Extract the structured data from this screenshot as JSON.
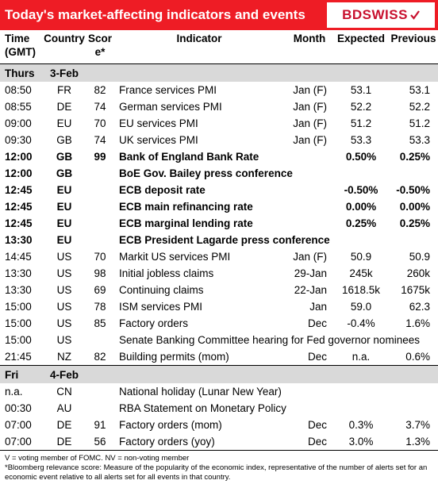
{
  "banner": {
    "title": "Today's market-affecting indicators and events",
    "logo_text": "BDSWISS"
  },
  "headers": {
    "time": "Time (GMT)",
    "country": "Country",
    "score": "Score*",
    "indicator": "Indicator",
    "month": "Month",
    "expected": "Expected",
    "previous": "Previous"
  },
  "days": [
    {
      "day": "Thurs",
      "date": "3-Feb",
      "rows": [
        {
          "time": "08:50",
          "country": "FR",
          "score": "82",
          "indicator": "France services PMI",
          "month": "Jan (F)",
          "expected": "53.1",
          "previous": "53.1",
          "bold": false
        },
        {
          "time": "08:55",
          "country": "DE",
          "score": "74",
          "indicator": "German services PMI",
          "month": "Jan (F)",
          "expected": "52.2",
          "previous": "52.2",
          "bold": false
        },
        {
          "time": "09:00",
          "country": "EU",
          "score": "70",
          "indicator": "EU services PMI",
          "month": "Jan (F)",
          "expected": "51.2",
          "previous": "51.2",
          "bold": false
        },
        {
          "time": "09:30",
          "country": "GB",
          "score": "74",
          "indicator": "UK services PMI",
          "month": "Jan (F)",
          "expected": "53.3",
          "previous": "53.3",
          "bold": false
        },
        {
          "time": "12:00",
          "country": "GB",
          "score": "99",
          "indicator": "Bank of England Bank Rate",
          "month": "",
          "expected": "0.50%",
          "previous": "0.25%",
          "bold": true
        },
        {
          "time": "12:00",
          "country": "GB",
          "score": "",
          "indicator": "BoE Gov. Bailey press conference",
          "month": "",
          "expected": "",
          "previous": "",
          "bold": true
        },
        {
          "time": "12:45",
          "country": "EU",
          "score": "",
          "indicator": "ECB deposit rate",
          "month": "",
          "expected": "-0.50%",
          "previous": "-0.50%",
          "bold": true
        },
        {
          "time": "12:45",
          "country": "EU",
          "score": "",
          "indicator": "ECB main refinancing rate",
          "month": "",
          "expected": "0.00%",
          "previous": "0.00%",
          "bold": true
        },
        {
          "time": "12:45",
          "country": "EU",
          "score": "",
          "indicator": "ECB marginal lending rate",
          "month": "",
          "expected": "0.25%",
          "previous": "0.25%",
          "bold": true
        },
        {
          "time": "13:30",
          "country": "EU",
          "score": "",
          "indicator": "ECB President Lagarde press conference",
          "month": "",
          "expected": "",
          "previous": "",
          "bold": true
        },
        {
          "time": "14:45",
          "country": "US",
          "score": "70",
          "indicator": "Markit US services PMI",
          "month": "Jan (F)",
          "expected": "50.9",
          "previous": "50.9",
          "bold": false
        },
        {
          "time": "13:30",
          "country": "US",
          "score": "98",
          "indicator": "Initial jobless claims",
          "month": "29-Jan",
          "expected": "245k",
          "previous": "260k",
          "bold": false
        },
        {
          "time": "13:30",
          "country": "US",
          "score": "69",
          "indicator": "Continuing claims",
          "month": "22-Jan",
          "expected": "1618.5k",
          "previous": "1675k",
          "bold": false
        },
        {
          "time": "15:00",
          "country": "US",
          "score": "78",
          "indicator": "ISM services PMI",
          "month": "Jan",
          "expected": "59.0",
          "previous": "62.3",
          "bold": false
        },
        {
          "time": "15:00",
          "country": "US",
          "score": "85",
          "indicator": "Factory orders",
          "month": "Dec",
          "expected": "-0.4%",
          "previous": "1.6%",
          "bold": false
        },
        {
          "time": "15:00",
          "country": "US",
          "score": "",
          "indicator": "Senate Banking Committee hearing for Fed governor nominees",
          "month": "",
          "expected": "",
          "previous": "",
          "bold": false
        },
        {
          "time": "21:45",
          "country": "NZ",
          "score": "82",
          "indicator": "Building permits (mom)",
          "month": "Dec",
          "expected": "n.a.",
          "previous": "0.6%",
          "bold": false
        }
      ]
    },
    {
      "day": "Fri",
      "date": "4-Feb",
      "rows": [
        {
          "time": "n.a.",
          "country": "CN",
          "score": "",
          "indicator": "National holiday (Lunar New Year)",
          "month": "",
          "expected": "",
          "previous": "",
          "bold": false
        },
        {
          "time": "00:30",
          "country": "AU",
          "score": "",
          "indicator": "RBA Statement on Monetary Policy",
          "month": "",
          "expected": "",
          "previous": "",
          "bold": false
        },
        {
          "time": "07:00",
          "country": "DE",
          "score": "91",
          "indicator": "Factory orders (mom)",
          "month": "Dec",
          "expected": "0.3%",
          "previous": "3.7%",
          "bold": false
        },
        {
          "time": "07:00",
          "country": "DE",
          "score": "56",
          "indicator": "Factory orders (yoy)",
          "month": "Dec",
          "expected": "3.0%",
          "previous": "1.3%",
          "bold": false
        }
      ]
    }
  ],
  "footnotes": [
    "V = voting member of FOMC. NV = non-voting member",
    "*Bloomberg relevance score:  Measure of the popularity of the economic index, representative of the number of alerts set for an economic event relative to all alerts set for all events in that country."
  ]
}
